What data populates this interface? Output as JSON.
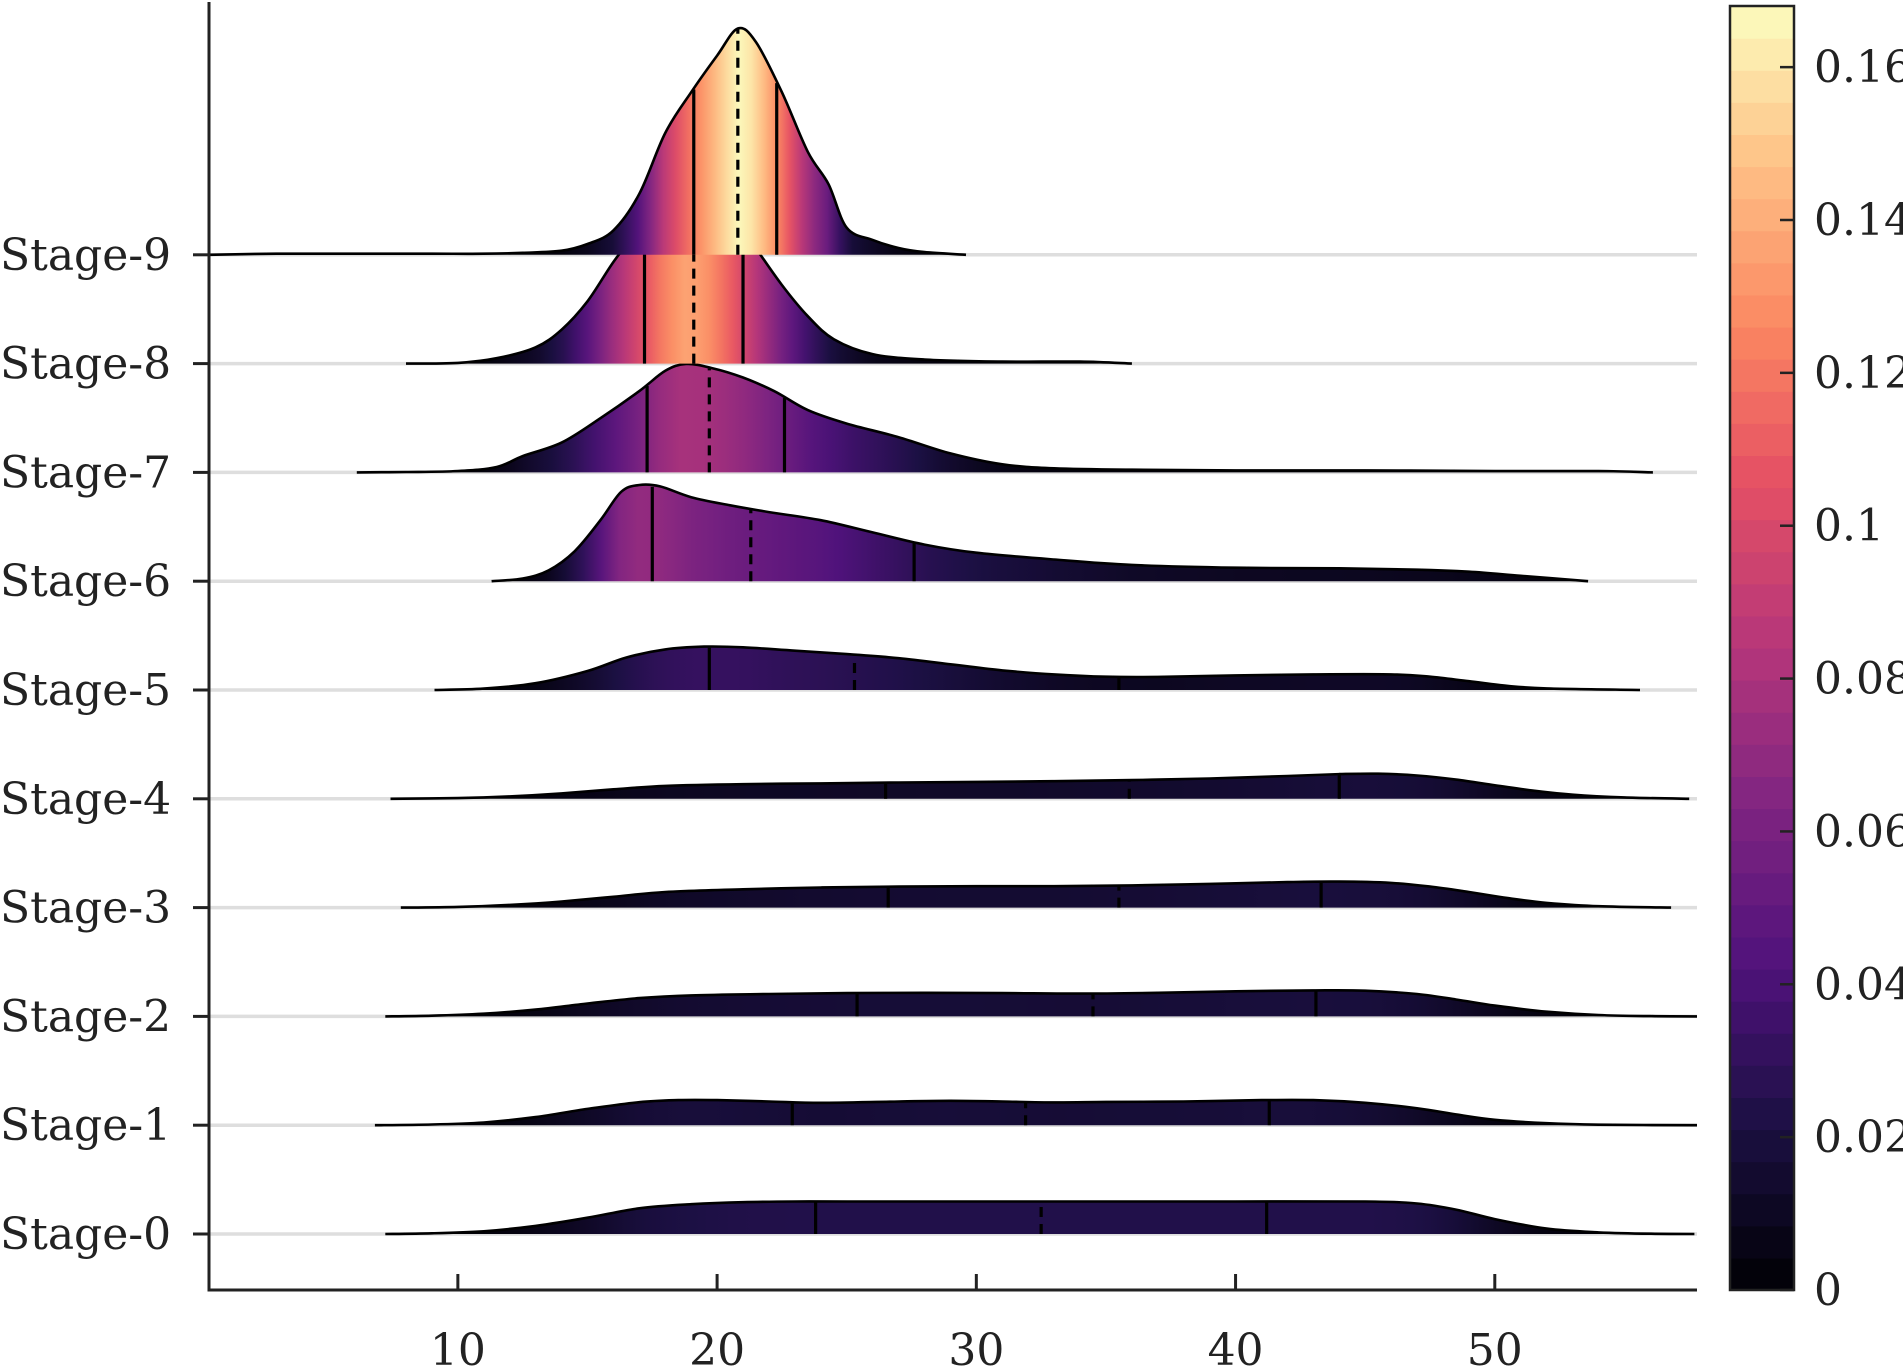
{
  "chart_data": {
    "type": "ridgeline",
    "title": "",
    "xlabel": "",
    "ylabel": "",
    "xlim": [
      0.4,
      57.8
    ],
    "x_ticks": [
      10,
      20,
      30,
      40,
      50
    ],
    "x_tick_labels": [
      "10",
      "20",
      "30",
      "40",
      "50"
    ],
    "grid": false,
    "colormap": "magma",
    "colorbar": {
      "range": [
        0,
        0.168
      ],
      "ticks": [
        0,
        0.02,
        0.04,
        0.06,
        0.08,
        0.1,
        0.12,
        0.14,
        0.16
      ],
      "tick_labels": [
        "0",
        "0.02",
        "0.04",
        "0.06",
        "0.08",
        "0.1",
        "0.12",
        "0.14",
        "0.16"
      ],
      "levels": 40
    },
    "line_legend": {
      "solid": "quartile",
      "dashed": "median"
    },
    "series": [
      {
        "name": "Stage-0",
        "x_range": [
          7.2,
          57.7
        ],
        "q1": 23.8,
        "median": 32.5,
        "q3": 41.2,
        "density": [
          [
            7.2,
            0
          ],
          [
            9,
            0.0005
          ],
          [
            11,
            0.002
          ],
          [
            13,
            0.006
          ],
          [
            15,
            0.012
          ],
          [
            17,
            0.019
          ],
          [
            19,
            0.022
          ],
          [
            21,
            0.0235
          ],
          [
            23,
            0.024
          ],
          [
            25,
            0.024
          ],
          [
            30,
            0.024
          ],
          [
            35,
            0.024
          ],
          [
            40,
            0.024
          ],
          [
            45,
            0.024
          ],
          [
            47,
            0.0225
          ],
          [
            48.5,
            0.018
          ],
          [
            50,
            0.011
          ],
          [
            52,
            0.004
          ],
          [
            54,
            0.0012
          ],
          [
            56,
            0.0002
          ],
          [
            57.7,
            0
          ]
        ]
      },
      {
        "name": "Stage-1",
        "x_range": [
          6.8,
          57.8
        ],
        "q1": 22.9,
        "median": 31.9,
        "q3": 41.3,
        "density": [
          [
            6.8,
            0
          ],
          [
            9,
            0.0005
          ],
          [
            11,
            0.002
          ],
          [
            13,
            0.006
          ],
          [
            15,
            0.012
          ],
          [
            17,
            0.017
          ],
          [
            18.5,
            0.0185
          ],
          [
            20,
            0.0185
          ],
          [
            22,
            0.0175
          ],
          [
            24,
            0.0165
          ],
          [
            27,
            0.0175
          ],
          [
            29,
            0.018
          ],
          [
            31,
            0.0175
          ],
          [
            33,
            0.0168
          ],
          [
            35,
            0.0172
          ],
          [
            38,
            0.0175
          ],
          [
            41,
            0.0185
          ],
          [
            43,
            0.0185
          ],
          [
            45,
            0.0165
          ],
          [
            47,
            0.0125
          ],
          [
            48.5,
            0.008
          ],
          [
            50,
            0.004
          ],
          [
            52,
            0.0015
          ],
          [
            54,
            0.0004
          ],
          [
            57.8,
            0
          ]
        ]
      },
      {
        "name": "Stage-2",
        "x_range": [
          7.2,
          57.8
        ],
        "q1": 25.4,
        "median": 34.5,
        "q3": 43.1,
        "density": [
          [
            7.2,
            0
          ],
          [
            9,
            0.0005
          ],
          [
            11,
            0.002
          ],
          [
            13,
            0.005
          ],
          [
            15,
            0.0095
          ],
          [
            17,
            0.0135
          ],
          [
            19,
            0.0155
          ],
          [
            22,
            0.0165
          ],
          [
            25,
            0.0172
          ],
          [
            28,
            0.0174
          ],
          [
            31,
            0.0172
          ],
          [
            34,
            0.0168
          ],
          [
            37,
            0.0174
          ],
          [
            40,
            0.0185
          ],
          [
            43,
            0.0192
          ],
          [
            45,
            0.019
          ],
          [
            47,
            0.0165
          ],
          [
            48.5,
            0.0125
          ],
          [
            50,
            0.008
          ],
          [
            52,
            0.0035
          ],
          [
            54,
            0.001
          ],
          [
            56,
            0.0002
          ],
          [
            57.8,
            0
          ]
        ]
      },
      {
        "name": "Stage-3",
        "x_range": [
          7.8,
          56.8
        ],
        "q1": 26.6,
        "median": 35.5,
        "q3": 43.3,
        "density": [
          [
            7.8,
            0
          ],
          [
            10,
            0.0005
          ],
          [
            12,
            0.002
          ],
          [
            14,
            0.0045
          ],
          [
            16,
            0.008
          ],
          [
            18,
            0.0115
          ],
          [
            21,
            0.0135
          ],
          [
            24,
            0.0148
          ],
          [
            27,
            0.0155
          ],
          [
            30,
            0.0158
          ],
          [
            33,
            0.0158
          ],
          [
            36,
            0.0164
          ],
          [
            39,
            0.0175
          ],
          [
            42,
            0.0188
          ],
          [
            44,
            0.0192
          ],
          [
            46,
            0.0182
          ],
          [
            47.5,
            0.0155
          ],
          [
            49,
            0.0115
          ],
          [
            50.5,
            0.007
          ],
          [
            52,
            0.0035
          ],
          [
            54,
            0.001
          ],
          [
            56.8,
            0
          ]
        ]
      },
      {
        "name": "Stage-4",
        "x_range": [
          7.4,
          57.5
        ],
        "q1": 26.5,
        "median": 35.9,
        "q3": 44.0,
        "density": [
          [
            7.4,
            0
          ],
          [
            10,
            0.0005
          ],
          [
            12,
            0.0018
          ],
          [
            14,
            0.004
          ],
          [
            16,
            0.007
          ],
          [
            18,
            0.0095
          ],
          [
            21,
            0.0108
          ],
          [
            24,
            0.0114
          ],
          [
            27,
            0.012
          ],
          [
            30,
            0.0125
          ],
          [
            33,
            0.013
          ],
          [
            36,
            0.0138
          ],
          [
            39,
            0.015
          ],
          [
            42,
            0.0168
          ],
          [
            44,
            0.0182
          ],
          [
            45.5,
            0.0185
          ],
          [
            47,
            0.0172
          ],
          [
            48.5,
            0.0142
          ],
          [
            50,
            0.01
          ],
          [
            51.5,
            0.006
          ],
          [
            53,
            0.003
          ],
          [
            55,
            0.001
          ],
          [
            57.5,
            0
          ]
        ]
      },
      {
        "name": "Stage-5",
        "x_range": [
          9.1,
          55.6
        ],
        "q1": 19.7,
        "median": 25.3,
        "q3": 35.5,
        "density": [
          [
            9.1,
            0
          ],
          [
            11,
            0.001
          ],
          [
            13,
            0.005
          ],
          [
            15,
            0.014
          ],
          [
            16.5,
            0.024
          ],
          [
            18,
            0.03
          ],
          [
            19.5,
            0.032
          ],
          [
            21,
            0.0315
          ],
          [
            23,
            0.029
          ],
          [
            25,
            0.0265
          ],
          [
            27,
            0.0235
          ],
          [
            29,
            0.019
          ],
          [
            31,
            0.0145
          ],
          [
            33,
            0.0115
          ],
          [
            35,
            0.0098
          ],
          [
            37,
            0.0097
          ],
          [
            40,
            0.0108
          ],
          [
            43,
            0.0115
          ],
          [
            46,
            0.0115
          ],
          [
            47.5,
            0.0098
          ],
          [
            49,
            0.0065
          ],
          [
            50.5,
            0.003
          ],
          [
            52,
            0.0012
          ],
          [
            55.6,
            0
          ]
        ]
      },
      {
        "name": "Stage-6",
        "x_range": [
          11.3,
          53.6
        ],
        "q1": 17.5,
        "median": 21.3,
        "q3": 27.6,
        "density": [
          [
            11.3,
            0
          ],
          [
            12.5,
            0.002
          ],
          [
            13.5,
            0.008
          ],
          [
            14.5,
            0.022
          ],
          [
            15.5,
            0.045
          ],
          [
            16.3,
            0.066
          ],
          [
            17,
            0.071
          ],
          [
            17.8,
            0.07
          ],
          [
            19,
            0.062
          ],
          [
            20.5,
            0.056
          ],
          [
            22,
            0.051
          ],
          [
            24,
            0.045
          ],
          [
            26,
            0.036
          ],
          [
            28,
            0.027
          ],
          [
            30,
            0.021
          ],
          [
            33,
            0.016
          ],
          [
            36,
            0.012
          ],
          [
            40,
            0.01
          ],
          [
            44,
            0.0095
          ],
          [
            47,
            0.0085
          ],
          [
            49,
            0.007
          ],
          [
            51,
            0.004
          ],
          [
            53.6,
            0
          ]
        ]
      },
      {
        "name": "Stage-7",
        "x_range": [
          6.1,
          56.1
        ],
        "q1": 17.3,
        "median": 19.7,
        "q3": 22.6,
        "density": [
          [
            6.1,
            0
          ],
          [
            8,
            0.0003
          ],
          [
            10,
            0.001
          ],
          [
            11.5,
            0.004
          ],
          [
            12.5,
            0.012
          ],
          [
            14,
            0.022
          ],
          [
            15.5,
            0.04
          ],
          [
            17,
            0.06
          ],
          [
            18,
            0.075
          ],
          [
            18.8,
            0.08
          ],
          [
            19.8,
            0.077
          ],
          [
            21,
            0.07
          ],
          [
            22.2,
            0.06
          ],
          [
            23.5,
            0.046
          ],
          [
            25,
            0.036
          ],
          [
            27,
            0.026
          ],
          [
            29,
            0.014
          ],
          [
            31,
            0.006
          ],
          [
            33,
            0.003
          ],
          [
            36,
            0.002
          ],
          [
            40,
            0.0015
          ],
          [
            45,
            0.0015
          ],
          [
            50,
            0.001
          ],
          [
            54,
            0.001
          ],
          [
            56.1,
            0
          ]
        ]
      },
      {
        "name": "Stage-8",
        "x_range": [
          8.0,
          36.0
        ],
        "q1": 17.2,
        "median": 19.1,
        "q3": 21.0,
        "density": [
          [
            8,
            0
          ],
          [
            10,
            0.0005
          ],
          [
            11.5,
            0.004
          ],
          [
            13,
            0.012
          ],
          [
            14,
            0.025
          ],
          [
            15,
            0.046
          ],
          [
            16,
            0.075
          ],
          [
            17,
            0.1
          ],
          [
            18,
            0.125
          ],
          [
            18.8,
            0.137
          ],
          [
            19.5,
            0.133
          ],
          [
            20.5,
            0.112
          ],
          [
            21.5,
            0.085
          ],
          [
            22.5,
            0.058
          ],
          [
            23.5,
            0.035
          ],
          [
            24.5,
            0.018
          ],
          [
            26,
            0.007
          ],
          [
            28,
            0.003
          ],
          [
            31,
            0.0015
          ],
          [
            34,
            0.0015
          ],
          [
            36,
            0
          ]
        ]
      },
      {
        "name": "Stage-9",
        "x_range": [
          0.4,
          29.6
        ],
        "q1": 19.1,
        "median": 20.8,
        "q3": 22.3,
        "density": [
          [
            0.4,
            0
          ],
          [
            3,
            0.0008
          ],
          [
            6,
            0.0008
          ],
          [
            9,
            0.0008
          ],
          [
            11,
            0.0008
          ],
          [
            12.5,
            0.0015
          ],
          [
            14,
            0.003
          ],
          [
            15,
            0.008
          ],
          [
            16,
            0.018
          ],
          [
            17,
            0.045
          ],
          [
            18,
            0.09
          ],
          [
            19,
            0.12
          ],
          [
            20,
            0.147
          ],
          [
            20.8,
            0.167
          ],
          [
            21.5,
            0.157
          ],
          [
            22.5,
            0.12
          ],
          [
            23.5,
            0.076
          ],
          [
            24.3,
            0.052
          ],
          [
            25,
            0.02
          ],
          [
            26,
            0.011
          ],
          [
            27,
            0.005
          ],
          [
            28,
            0.002
          ],
          [
            29.6,
            0
          ]
        ]
      }
    ]
  }
}
